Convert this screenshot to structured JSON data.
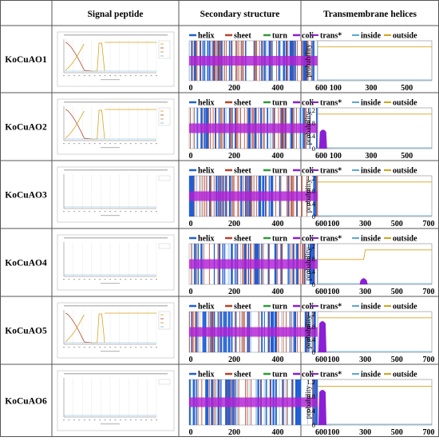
{
  "headers": [
    "Signal peptide",
    "Secondary structure",
    "Transmembrane helices"
  ],
  "rows": [
    {
      "label": "KoCuAO1",
      "sp_curves": true,
      "ss_xticks": [
        "0",
        "200",
        "400",
        "600"
      ],
      "tm_xticks": [
        "100",
        "300",
        "500"
      ],
      "tm_yticks": [],
      "tm_trans_peak": 0,
      "tm_outside_dip": false
    },
    {
      "label": "KoCuAO2",
      "sp_curves": true,
      "ss_xticks": [
        "0",
        "200",
        "400",
        "600"
      ],
      "tm_xticks": [
        "100",
        "300",
        "500"
      ],
      "tm_yticks": [
        "1.2",
        "0.8",
        "0.4",
        "0"
      ],
      "tm_trans_peak": 0.62,
      "tm_outside_dip": false
    },
    {
      "label": "KoCuAO3",
      "sp_curves": false,
      "ss_xticks": [
        "0",
        "200",
        "400",
        "600"
      ],
      "tm_xticks": [
        "100",
        "300",
        "500",
        "700"
      ],
      "tm_yticks": [
        "1.2",
        "0.8",
        "0.4",
        "0"
      ],
      "tm_trans_peak": 0,
      "tm_outside_dip": false
    },
    {
      "label": "KoCuAO4",
      "sp_curves": false,
      "ss_xticks": [
        "0",
        "200",
        "400",
        "600"
      ],
      "tm_xticks": [
        "100",
        "300",
        "500",
        "700"
      ],
      "tm_yticks": [
        "1.2",
        "0.8",
        "0.4",
        "0"
      ],
      "tm_trans_peak": 0.22,
      "tm_outside_dip": true
    },
    {
      "label": "KoCuAO5",
      "sp_curves": true,
      "ss_xticks": [
        "0",
        "200",
        "400",
        "600"
      ],
      "tm_xticks": [
        "100",
        "300",
        "500",
        "700"
      ],
      "tm_yticks": [
        "1.2",
        "0.8",
        "0.4",
        "0"
      ],
      "tm_trans_peak": 1.0,
      "tm_outside_dip": false
    },
    {
      "label": "KoCuAO6",
      "sp_curves": false,
      "ss_xticks": [
        "0",
        "200",
        "400",
        "600"
      ],
      "tm_xticks": [
        "100",
        "300",
        "500",
        "700"
      ],
      "tm_yticks": [
        "1.2",
        "0.8",
        "0.4",
        "0"
      ],
      "tm_trans_peak": 1.0,
      "tm_outside_dip": false
    }
  ],
  "ss_legend": [
    {
      "name": "helix",
      "color": "#1f5fd6"
    },
    {
      "name": "sheet",
      "color": "#b5432a"
    },
    {
      "name": "turn",
      "color": "#2e9a3a"
    },
    {
      "name": "coli",
      "color": "#8a1fd6"
    }
  ],
  "tm_legend": [
    {
      "name": "trans*",
      "color": "#8a1fd6"
    },
    {
      "name": "inside",
      "color": "#5aa7d8"
    },
    {
      "name": "outside",
      "color": "#d9a21c"
    }
  ],
  "tm_ylabel": "probability",
  "colors": {
    "coil_band": "#b020d6",
    "helix": "#1f5fd6",
    "sheet": "#b5432a",
    "grid": "#cfcfcf"
  },
  "chart_data": {
    "type": "table",
    "columns": [
      "Signal peptide",
      "Secondary structure",
      "Transmembrane helices"
    ],
    "rows": [
      "KoCuAO1",
      "KoCuAO2",
      "KoCuAO3",
      "KoCuAO4",
      "KoCuAO5",
      "KoCuAO6"
    ],
    "secondary_structure_series": [
      "helix",
      "sheet",
      "turn",
      "coli"
    ],
    "transmembrane_series": [
      "trans*",
      "inside",
      "outside"
    ],
    "transmembrane_ylim": [
      0,
      1.2
    ],
    "transmembrane_trans_peak": {
      "KoCuAO1": 0,
      "KoCuAO2": 0.62,
      "KoCuAO3": 0,
      "KoCuAO4": 0.22,
      "KoCuAO5": 1.0,
      "KoCuAO6": 1.0
    }
  }
}
